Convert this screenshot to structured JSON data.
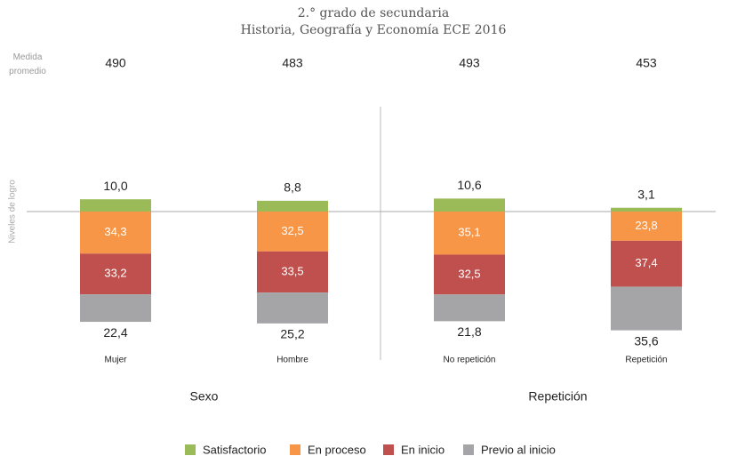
{
  "chart_data": {
    "type": "diverging_stacked_bar",
    "title": "2.° grado de secundaria",
    "subtitle": "Historia, Geografía y Economía ECE 2016",
    "y_label": "Niveles de logro",
    "mean_label": "Medida promedio",
    "categories": [
      "Mujer",
      "Hombre",
      "No repetición",
      "Repetición"
    ],
    "means": [
      490,
      483,
      493,
      453
    ],
    "groups": [
      {
        "name": "Sexo",
        "categories": [
          0,
          1
        ]
      },
      {
        "name": "Repetición",
        "categories": [
          2,
          3
        ]
      }
    ],
    "series": [
      {
        "name": "Satisfactorio",
        "color": "#9bbb59",
        "values": [
          10.0,
          8.8,
          10.6,
          3.1
        ],
        "value_labels": [
          "10,0",
          "8,8",
          "10,6",
          "3,1"
        ]
      },
      {
        "name": "En proceso",
        "color": "#f79646",
        "values": [
          34.3,
          32.5,
          35.1,
          23.8
        ],
        "value_labels": [
          "34,3",
          "32,5",
          "35,1",
          "23,8"
        ]
      },
      {
        "name": "En inicio",
        "color": "#c0504d",
        "values": [
          33.2,
          33.5,
          32.5,
          37.4
        ],
        "value_labels": [
          "33,2",
          "33,5",
          "32,5",
          "37,4"
        ]
      },
      {
        "name": "Previo al inicio",
        "color": "#a5a5a8",
        "values": [
          22.4,
          25.2,
          21.8,
          35.6
        ],
        "value_labels": [
          "22,4",
          "25,2",
          "21,8",
          "35,6"
        ]
      }
    ]
  }
}
